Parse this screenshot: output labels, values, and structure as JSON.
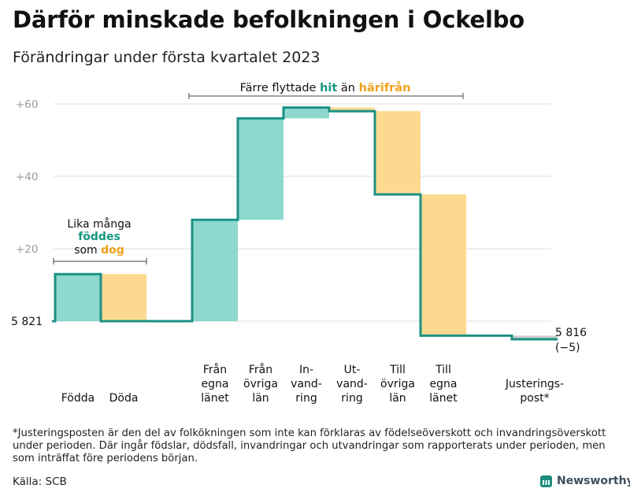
{
  "header": {
    "title": "Därför minskade befolkningen i Ockelbo",
    "subtitle": "Förändringar under första kvartalet 2023"
  },
  "colors": {
    "teal": "#8ed8cf",
    "orange": "#fdd98f",
    "line": "#1c9283",
    "teal_text": "#169682",
    "orange_text": "#f0a21c",
    "grid": "#dddddd",
    "adjust": "#cccccc"
  },
  "chart_data": {
    "type": "waterfall",
    "start_value": 5821,
    "start_label": "5 821",
    "end_value": 5816,
    "end_label": "5 816",
    "end_change_label": "(−5)",
    "ylim": [
      -6,
      62
    ],
    "yticks": [
      {
        "value": 60,
        "label": "+60"
      },
      {
        "value": 40,
        "label": "+40"
      },
      {
        "value": 20,
        "label": "+20"
      }
    ],
    "steps": [
      {
        "label": "Födda",
        "lines": [
          "",
          "",
          "Födda"
        ],
        "change": 13,
        "color": "teal"
      },
      {
        "label": "Döda",
        "lines": [
          "",
          "",
          "Döda"
        ],
        "change": -13,
        "color": "orange"
      },
      {
        "label": "",
        "lines": [],
        "change": 0,
        "color": "none"
      },
      {
        "label": "Från egna länet",
        "lines": [
          "Från",
          "egna",
          "länet"
        ],
        "change": 28,
        "color": "teal"
      },
      {
        "label": "Från övriga län",
        "lines": [
          "Från",
          "övriga",
          "län"
        ],
        "change": 28,
        "color": "teal"
      },
      {
        "label": "Invandring",
        "lines": [
          "In-",
          "vand-",
          "ring"
        ],
        "change": 3,
        "color": "teal"
      },
      {
        "label": "Utvandring",
        "lines": [
          "Ut-",
          "vand-",
          "ring"
        ],
        "change": -1,
        "color": "orange"
      },
      {
        "label": "Till övriga län",
        "lines": [
          "Till",
          "övriga",
          "län"
        ],
        "change": -23,
        "color": "orange"
      },
      {
        "label": "Till egna länet",
        "lines": [
          "Till",
          "egna",
          "länet"
        ],
        "change": -39,
        "color": "orange"
      },
      {
        "label": "",
        "lines": [],
        "change": 0,
        "color": "none"
      },
      {
        "label": "Justeringspost*",
        "lines": [
          "",
          "Justerings-",
          "post*"
        ],
        "change": -1,
        "color": "adjust"
      }
    ],
    "annotations": {
      "left": {
        "line1": "Lika många",
        "line2": "föddes",
        "line3_a": "som ",
        "line3_b": "dog"
      },
      "top": {
        "part1": "Färre flyttade ",
        "part2": "hit",
        "part3": " än ",
        "part4": "härifrån"
      }
    }
  },
  "footnote": "*Justeringsposten är den del av folkökningen som inte kan förklaras av födelseöverskott och invandringsöverskott under perioden. Där ingår födslar, dödsfall, invandringar och utvandringar som rapporterats under perioden, men som inträffat före periodens början.",
  "source": "Källa: SCB",
  "brand": "Newsworthy"
}
